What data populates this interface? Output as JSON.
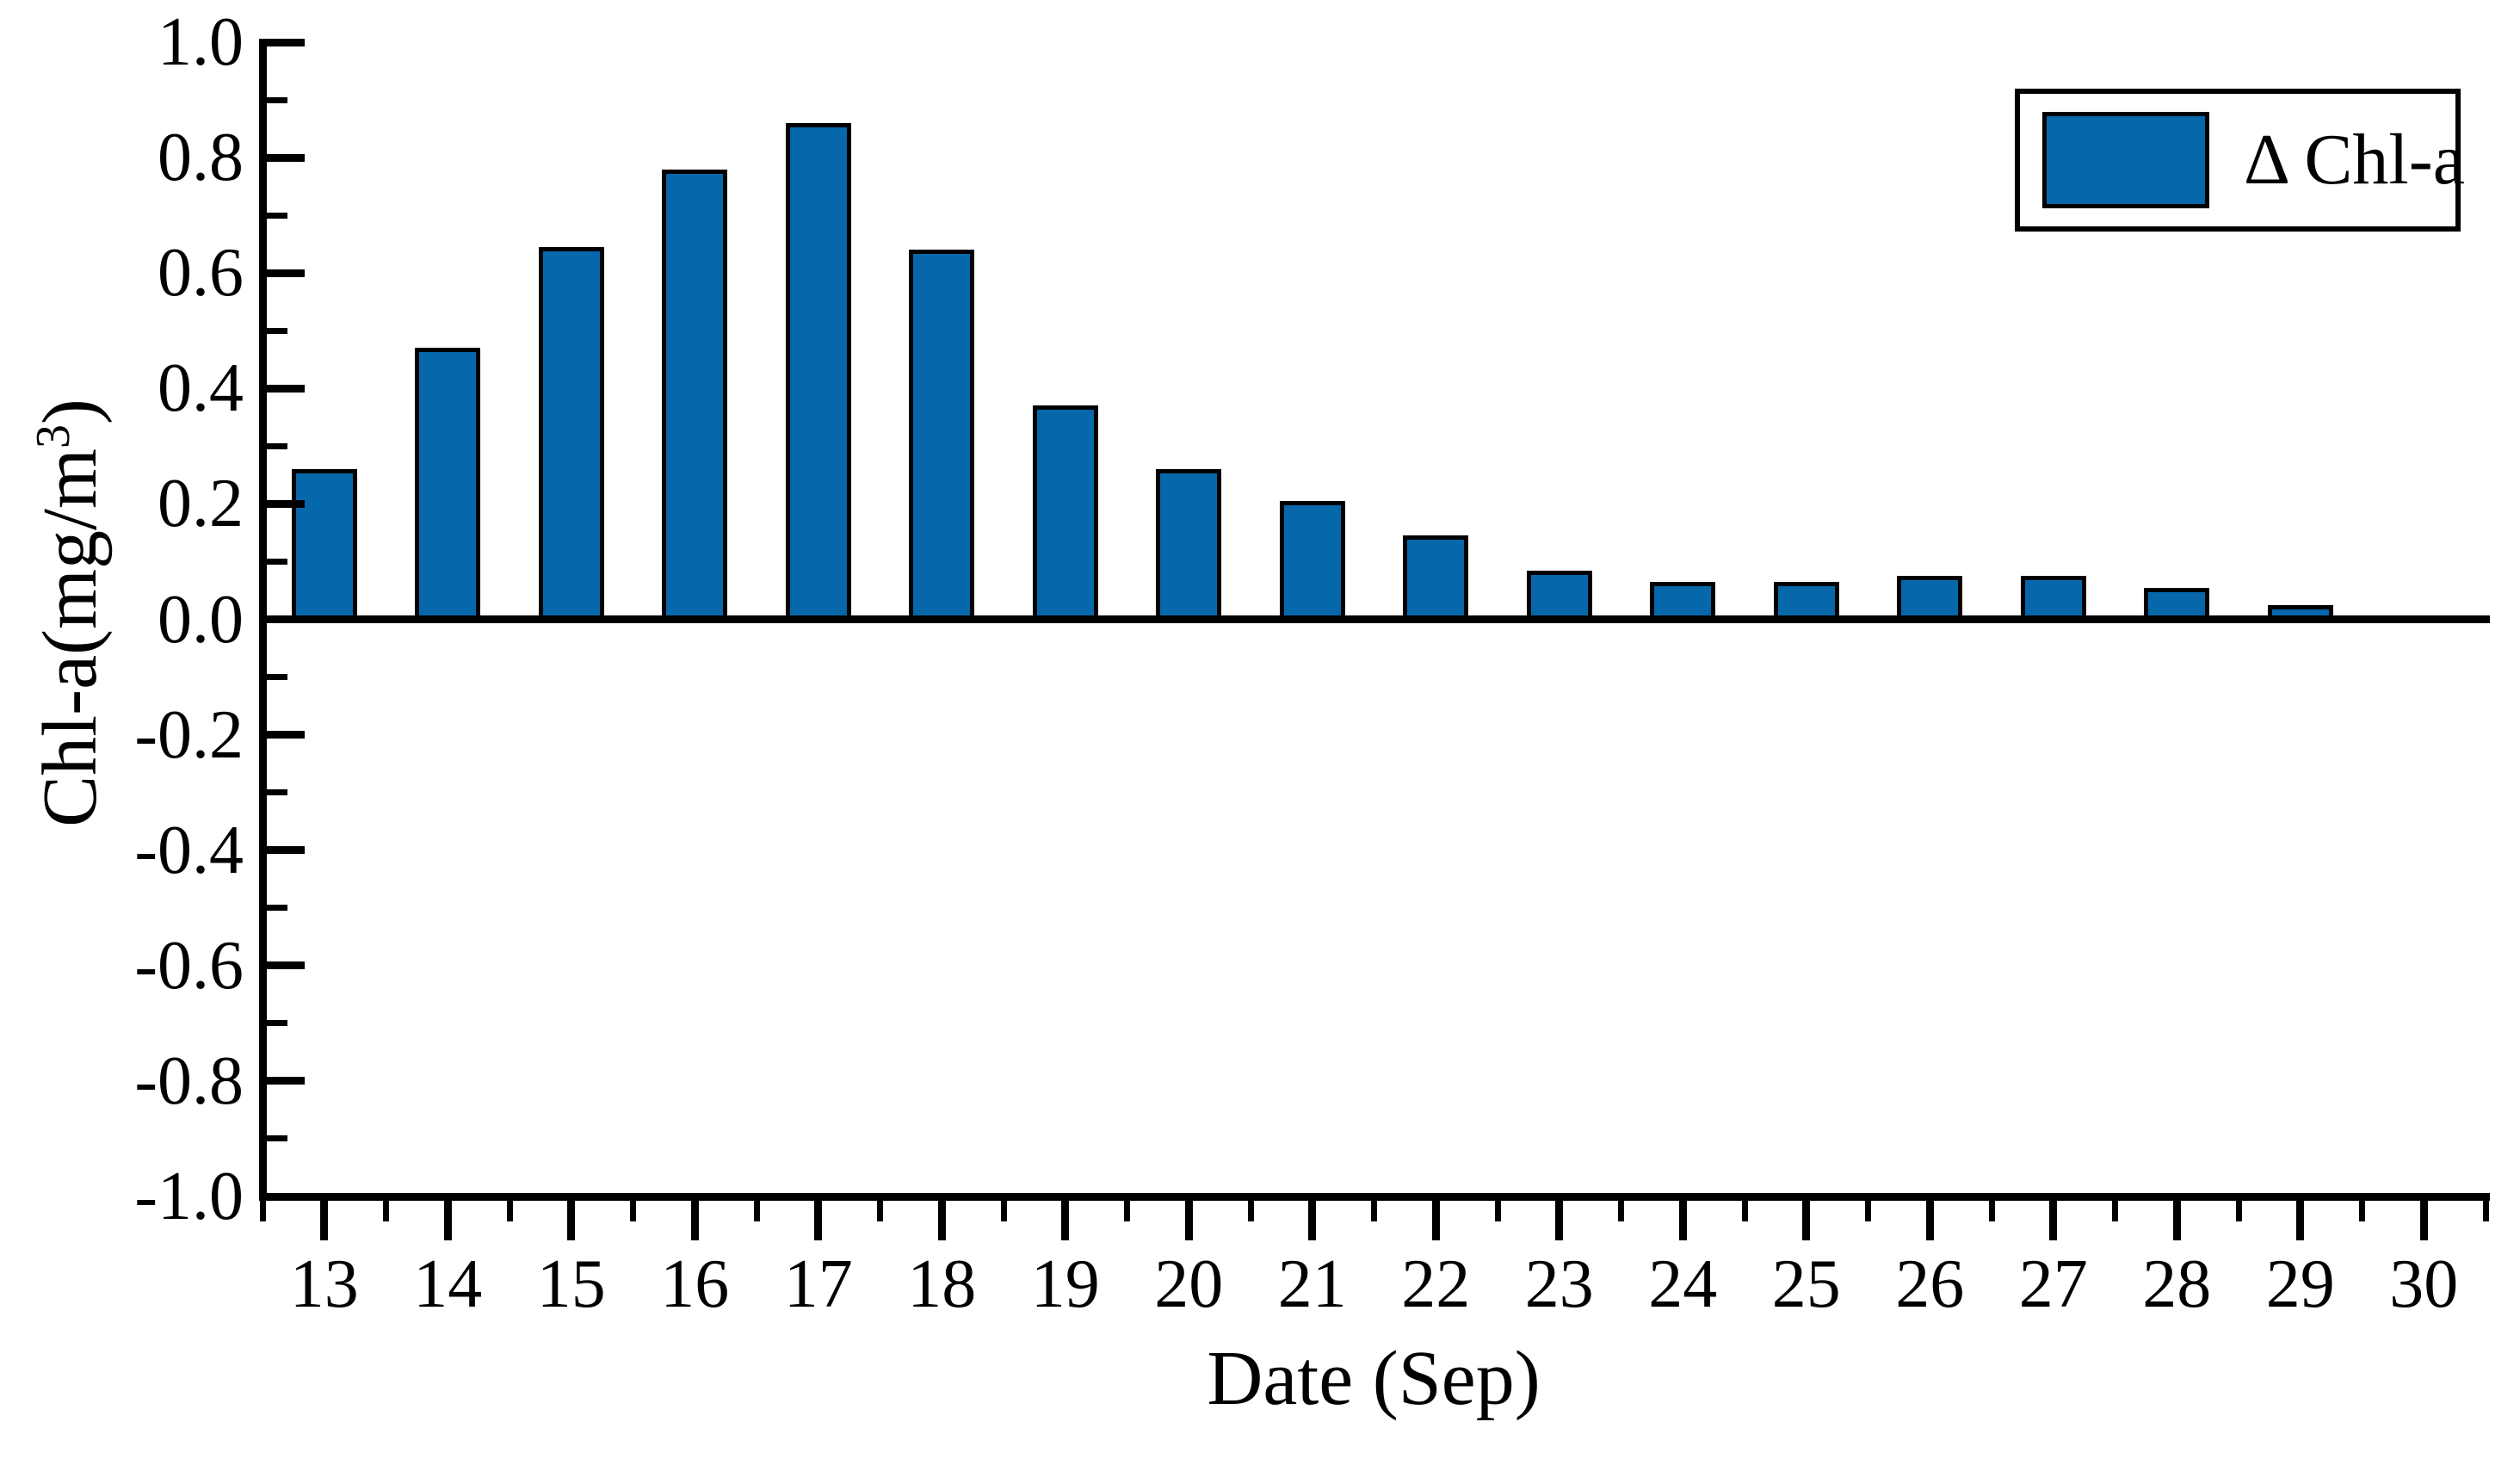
{
  "figure": {
    "background": "#ffffff",
    "text_color": "#000000"
  },
  "chart_data": {
    "type": "bar",
    "title": "",
    "xlabel": "Date (Sep)",
    "ylabel": "Chl-a(mg/m³)",
    "ylabel_parts": {
      "prefix": "Chl-a(mg/m",
      "sup": "3",
      "suffix": ")"
    },
    "categories": [
      "13",
      "14",
      "15",
      "16",
      "17",
      "18",
      "19",
      "20",
      "21",
      "22",
      "23",
      "24",
      "25",
      "26",
      "27",
      "28",
      "29",
      "30"
    ],
    "values": [
      0.26,
      0.47,
      0.645,
      0.78,
      0.86,
      0.64,
      0.37,
      0.26,
      0.205,
      0.145,
      0.085,
      0.065,
      0.065,
      0.075,
      0.075,
      0.055,
      0.025,
      0.005
    ],
    "series": [
      {
        "name": "Δ Chl-a",
        "values": [
          0.26,
          0.47,
          0.645,
          0.78,
          0.86,
          0.64,
          0.37,
          0.26,
          0.205,
          0.145,
          0.085,
          0.065,
          0.065,
          0.075,
          0.075,
          0.055,
          0.025,
          0.005
        ]
      }
    ],
    "ylim": [
      -1.0,
      1.0
    ],
    "ytick_step": 0.2,
    "ytick_minor_step": 0.1,
    "ytick_labels": [
      "1.0",
      "0.8",
      "0.6",
      "0.4",
      "0.2",
      "0.0",
      "-0.2",
      "-0.4",
      "-0.6",
      "-0.8",
      "-1.0"
    ],
    "grid": false,
    "bar_color": "#0668ab",
    "bar_edge_color": "#000000",
    "axis_color": "#000000",
    "legend": {
      "label": "Δ Chl-a",
      "position": "top-right",
      "boxed": true
    }
  }
}
